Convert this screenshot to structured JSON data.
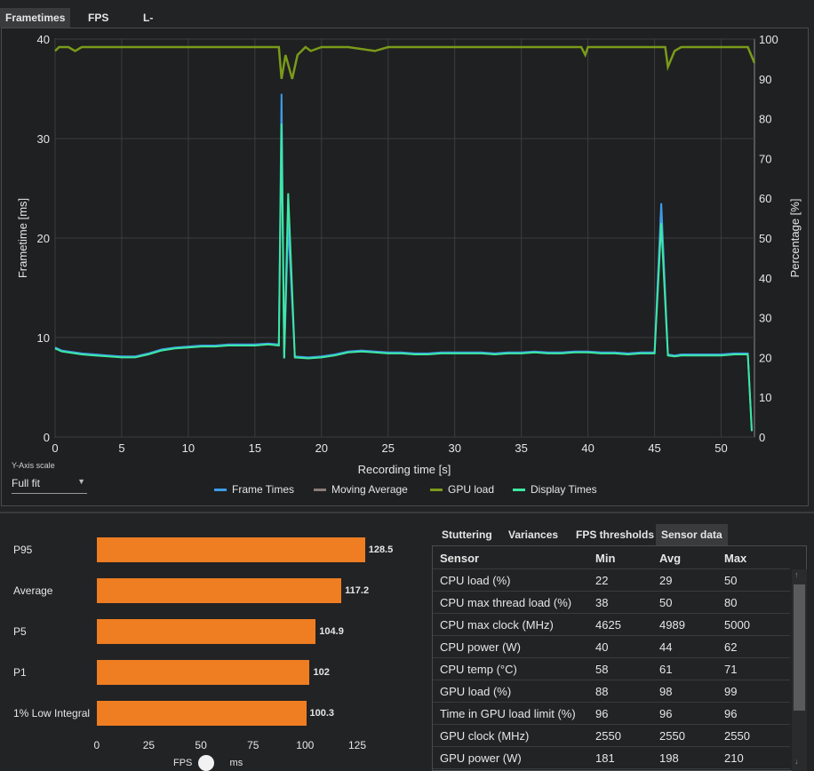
{
  "tabs": [
    "Frametimes",
    "FPS",
    "L-shape"
  ],
  "chart_data": [
    {
      "type": "line",
      "xlabel": "Recording time [s]",
      "ylabel": "Frametime [ms]",
      "y2label": "Percentage [%]",
      "xlim": [
        0,
        52.5
      ],
      "ylim": [
        0,
        40
      ],
      "y2lim": [
        0,
        100
      ],
      "xticks": [
        "0",
        "5",
        "10",
        "15",
        "20",
        "25",
        "30",
        "35",
        "40",
        "45",
        "50"
      ],
      "yticks": [
        "0",
        "10",
        "20",
        "30",
        "40"
      ],
      "y2ticks": [
        "0",
        "10",
        "20",
        "30",
        "40",
        "50",
        "60",
        "70",
        "80",
        "90",
        "100"
      ],
      "grid": true,
      "series": [
        {
          "name": "Frame Times",
          "color": "#3d9be9",
          "axis": "left",
          "x": [
            0,
            0.5,
            1,
            1.5,
            2,
            3,
            4,
            5,
            6,
            7,
            8,
            9,
            10,
            11,
            12,
            13,
            14,
            15,
            16,
            16.8,
            17,
            17.2,
            17.5,
            18,
            19,
            20,
            21,
            22,
            23,
            24,
            25,
            26,
            27,
            28,
            29,
            30,
            31,
            32,
            33,
            34,
            35,
            36,
            37,
            38,
            39,
            40,
            41,
            42,
            43,
            44,
            45,
            45.5,
            46,
            46.5,
            47,
            48,
            49,
            50,
            51,
            52,
            52.3
          ],
          "y": [
            9,
            8.7,
            8.6,
            8.5,
            8.4,
            8.3,
            8.2,
            8.1,
            8.1,
            8.4,
            8.8,
            9,
            9.1,
            9.2,
            9.2,
            9.3,
            9.3,
            9.3,
            9.4,
            9.3,
            34.5,
            7.9,
            21.5,
            8.1,
            8,
            8.1,
            8.3,
            8.6,
            8.7,
            8.6,
            8.5,
            8.5,
            8.4,
            8.4,
            8.5,
            8.5,
            8.5,
            8.5,
            8.4,
            8.5,
            8.5,
            8.6,
            8.5,
            8.5,
            8.6,
            8.6,
            8.5,
            8.5,
            8.4,
            8.5,
            8.5,
            23.5,
            8.3,
            8.2,
            8.3,
            8.3,
            8.3,
            8.3,
            8.4,
            8.4,
            0.6
          ]
        },
        {
          "name": "Moving Average",
          "color": "#8a7d76",
          "axis": "left",
          "x": [],
          "y": []
        },
        {
          "name": "GPU load",
          "color": "#7a9a1a",
          "axis": "right",
          "x": [
            0,
            0.3,
            1,
            1.5,
            2,
            5,
            10,
            15,
            16.8,
            17,
            17.3,
            17.8,
            18.2,
            18.8,
            19.2,
            20,
            21,
            22,
            24,
            25,
            30,
            35,
            39.5,
            39.8,
            40,
            45,
            45.8,
            46,
            46.5,
            47,
            52,
            52.5
          ],
          "y": [
            97,
            98,
            98,
            97,
            98,
            98,
            98,
            98,
            98,
            90,
            96,
            90,
            96,
            98,
            97,
            98,
            98,
            98,
            97,
            98,
            98,
            98,
            98,
            96,
            98,
            98,
            98,
            93,
            97,
            98,
            98,
            94
          ]
        },
        {
          "name": "Display Times",
          "color": "#3de8a2",
          "axis": "left",
          "x": [
            0,
            0.5,
            1,
            1.5,
            2,
            3,
            4,
            5,
            6,
            7,
            8,
            9,
            10,
            11,
            12,
            13,
            14,
            15,
            16,
            16.8,
            17,
            17.2,
            17.5,
            18,
            19,
            20,
            21,
            22,
            23,
            24,
            25,
            26,
            27,
            28,
            29,
            30,
            31,
            32,
            33,
            34,
            35,
            36,
            37,
            38,
            39,
            40,
            41,
            42,
            43,
            44,
            45,
            45.5,
            46,
            46.5,
            47,
            48,
            49,
            50,
            51,
            52,
            52.3
          ],
          "y": [
            8.9,
            8.6,
            8.5,
            8.4,
            8.3,
            8.2,
            8.1,
            8,
            8,
            8.3,
            8.7,
            8.9,
            9,
            9.1,
            9.1,
            9.2,
            9.2,
            9.2,
            9.3,
            9.2,
            31.5,
            7.9,
            24.5,
            8,
            7.9,
            8,
            8.2,
            8.5,
            8.6,
            8.5,
            8.4,
            8.4,
            8.3,
            8.3,
            8.4,
            8.4,
            8.4,
            8.4,
            8.3,
            8.4,
            8.4,
            8.5,
            8.4,
            8.4,
            8.5,
            8.5,
            8.4,
            8.4,
            8.3,
            8.4,
            8.4,
            21.5,
            8.2,
            8.1,
            8.2,
            8.2,
            8.2,
            8.2,
            8.3,
            8.3,
            0.6
          ]
        }
      ],
      "legend": [
        "Frame Times",
        "Moving Average",
        "GPU load",
        "Display Times"
      ],
      "legend_position": "bottom"
    },
    {
      "type": "bar",
      "orientation": "horizontal",
      "categories": [
        "P95",
        "Average",
        "P5",
        "P1",
        "1% Low Integral"
      ],
      "values": [
        128.5,
        117.2,
        104.9,
        102,
        100.3
      ],
      "value_labels": [
        "128.5",
        "117.2",
        "104.9",
        "102",
        "100.3"
      ],
      "color": "#ef7d22",
      "xlim": [
        0,
        130
      ],
      "xticks": [
        "0",
        "25",
        "50",
        "75",
        "100",
        "125"
      ]
    }
  ],
  "y_axis_scale": {
    "label": "Y-Axis scale",
    "value": "Full fit"
  },
  "fps_toggle": {
    "left": "FPS",
    "right": "ms"
  },
  "bottom_tabs": [
    "Stuttering",
    "Variances",
    "FPS thresholds",
    "Sensor data"
  ],
  "sensor_table": {
    "headers": [
      "Sensor",
      "Min",
      "Avg",
      "Max"
    ],
    "rows": [
      [
        "CPU load (%)",
        "22",
        "29",
        "50"
      ],
      [
        "CPU max thread load (%)",
        "38",
        "50",
        "80"
      ],
      [
        "CPU max clock (MHz)",
        "4625",
        "4989",
        "5000"
      ],
      [
        "CPU power (W)",
        "40",
        "44",
        "62"
      ],
      [
        "CPU temp (°C)",
        "58",
        "61",
        "71"
      ],
      [
        "GPU load (%)",
        "88",
        "98",
        "99"
      ],
      [
        "Time in GPU load limit (%)",
        "96",
        "96",
        "96"
      ],
      [
        "GPU clock (MHz)",
        "2550",
        "2550",
        "2550"
      ],
      [
        "GPU power (W)",
        "181",
        "198",
        "210"
      ]
    ]
  }
}
